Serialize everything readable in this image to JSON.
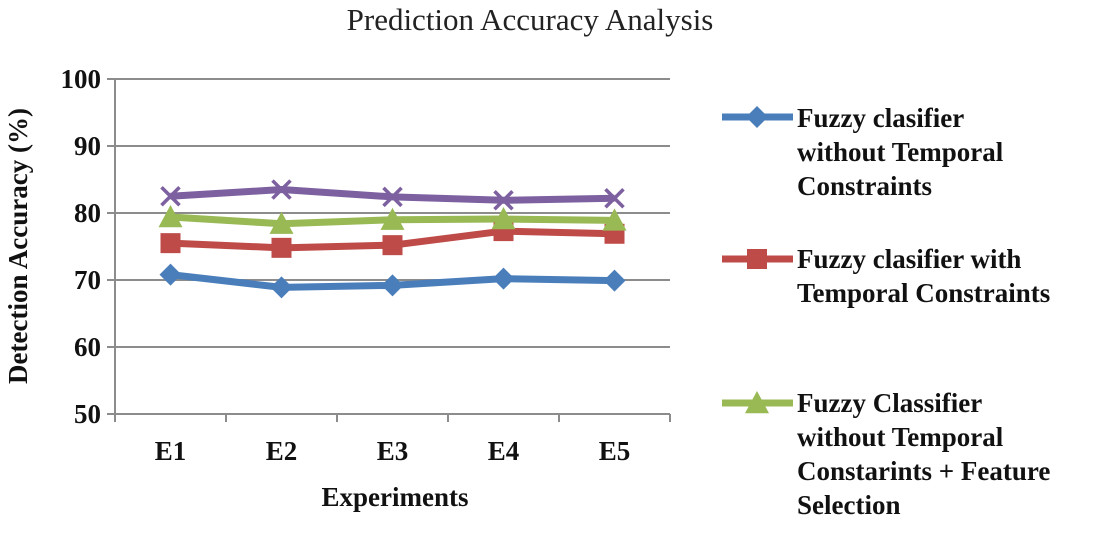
{
  "chart_data": {
    "type": "line",
    "title": "Prediction Accuracy Analysis",
    "xlabel": "Experiments",
    "ylabel": "Detection Accuracy (%)",
    "categories": [
      "E1",
      "E2",
      "E3",
      "E4",
      "E5"
    ],
    "ylim": [
      50,
      100
    ],
    "yticks": [
      50,
      60,
      70,
      80,
      90,
      100
    ],
    "grid": "horizontal",
    "legend_position": "right",
    "series": [
      {
        "name": "Fuzzy clasifier without Temporal Constraints",
        "legend_lines": [
          "Fuzzy clasifier",
          "without Temporal",
          "Constraints"
        ],
        "color": "#4a7ebb",
        "marker": "diamond",
        "values": [
          70.8,
          68.9,
          69.2,
          70.2,
          69.9
        ]
      },
      {
        "name": "Fuzzy clasifier with Temporal Constraints",
        "legend_lines": [
          "Fuzzy clasifier with",
          "Temporal Constraints"
        ],
        "color": "#be4b48",
        "marker": "square",
        "values": [
          75.5,
          74.8,
          75.2,
          77.3,
          76.9
        ]
      },
      {
        "name": "Fuzzy Classifier without Temporal Constarints + Feature Selection",
        "legend_lines": [
          "Fuzzy Classifier",
          "without Temporal",
          "Constarints + Feature",
          "Selection"
        ],
        "color": "#98b954",
        "marker": "triangle",
        "values": [
          79.4,
          78.4,
          79.0,
          79.1,
          78.9
        ]
      },
      {
        "color": "#7d60a0",
        "marker": "x",
        "values": [
          82.5,
          83.5,
          82.4,
          81.9,
          82.2
        ]
      }
    ]
  }
}
